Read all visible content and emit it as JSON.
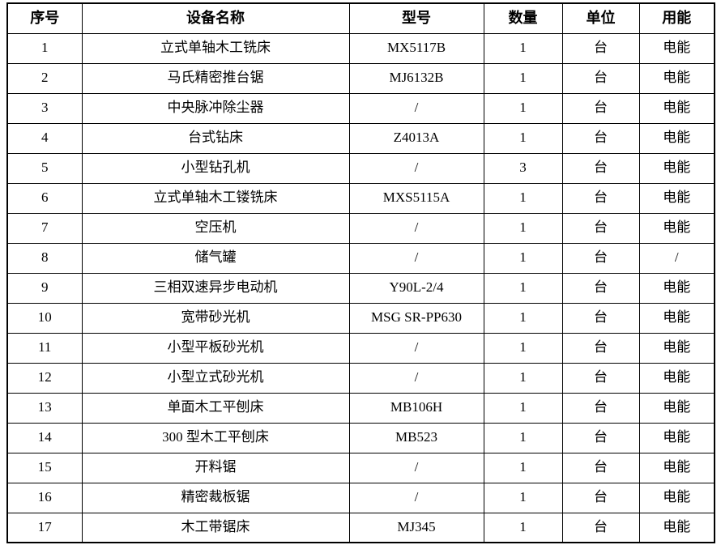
{
  "table": {
    "column_keys": [
      "index",
      "name",
      "model",
      "quantity",
      "unit",
      "energy"
    ],
    "headers": [
      "序号",
      "设备名称",
      "型号",
      "数量",
      "单位",
      "用能"
    ],
    "rows": [
      [
        "1",
        "立式单轴木工铣床",
        "MX5117B",
        "1",
        "台",
        "电能"
      ],
      [
        "2",
        "马氏精密推台锯",
        "MJ6132B",
        "1",
        "台",
        "电能"
      ],
      [
        "3",
        "中央脉冲除尘器",
        "/",
        "1",
        "台",
        "电能"
      ],
      [
        "4",
        "台式钻床",
        "Z4013A",
        "1",
        "台",
        "电能"
      ],
      [
        "5",
        "小型钻孔机",
        "/",
        "3",
        "台",
        "电能"
      ],
      [
        "6",
        "立式单轴木工镂铣床",
        "MXS5115A",
        "1",
        "台",
        "电能"
      ],
      [
        "7",
        "空压机",
        "/",
        "1",
        "台",
        "电能"
      ],
      [
        "8",
        "储气罐",
        "/",
        "1",
        "台",
        "/"
      ],
      [
        "9",
        "三相双速异步电动机",
        "Y90L-2/4",
        "1",
        "台",
        "电能"
      ],
      [
        "10",
        "宽带砂光机",
        "MSG SR-PP630",
        "1",
        "台",
        "电能"
      ],
      [
        "11",
        "小型平板砂光机",
        "/",
        "1",
        "台",
        "电能"
      ],
      [
        "12",
        "小型立式砂光机",
        "/",
        "1",
        "台",
        "电能"
      ],
      [
        "13",
        "单面木工平刨床",
        "MB106H",
        "1",
        "台",
        "电能"
      ],
      [
        "14",
        "300 型木工平刨床",
        "MB523",
        "1",
        "台",
        "电能"
      ],
      [
        "15",
        "开料锯",
        "/",
        "1",
        "台",
        "电能"
      ],
      [
        "16",
        "精密裁板锯",
        "/",
        "1",
        "台",
        "电能"
      ],
      [
        "17",
        "木工带锯床",
        "MJ345",
        "1",
        "台",
        "电能"
      ]
    ],
    "border_color": "#000000",
    "text_color": "#000000",
    "background_color": "#ffffff"
  }
}
